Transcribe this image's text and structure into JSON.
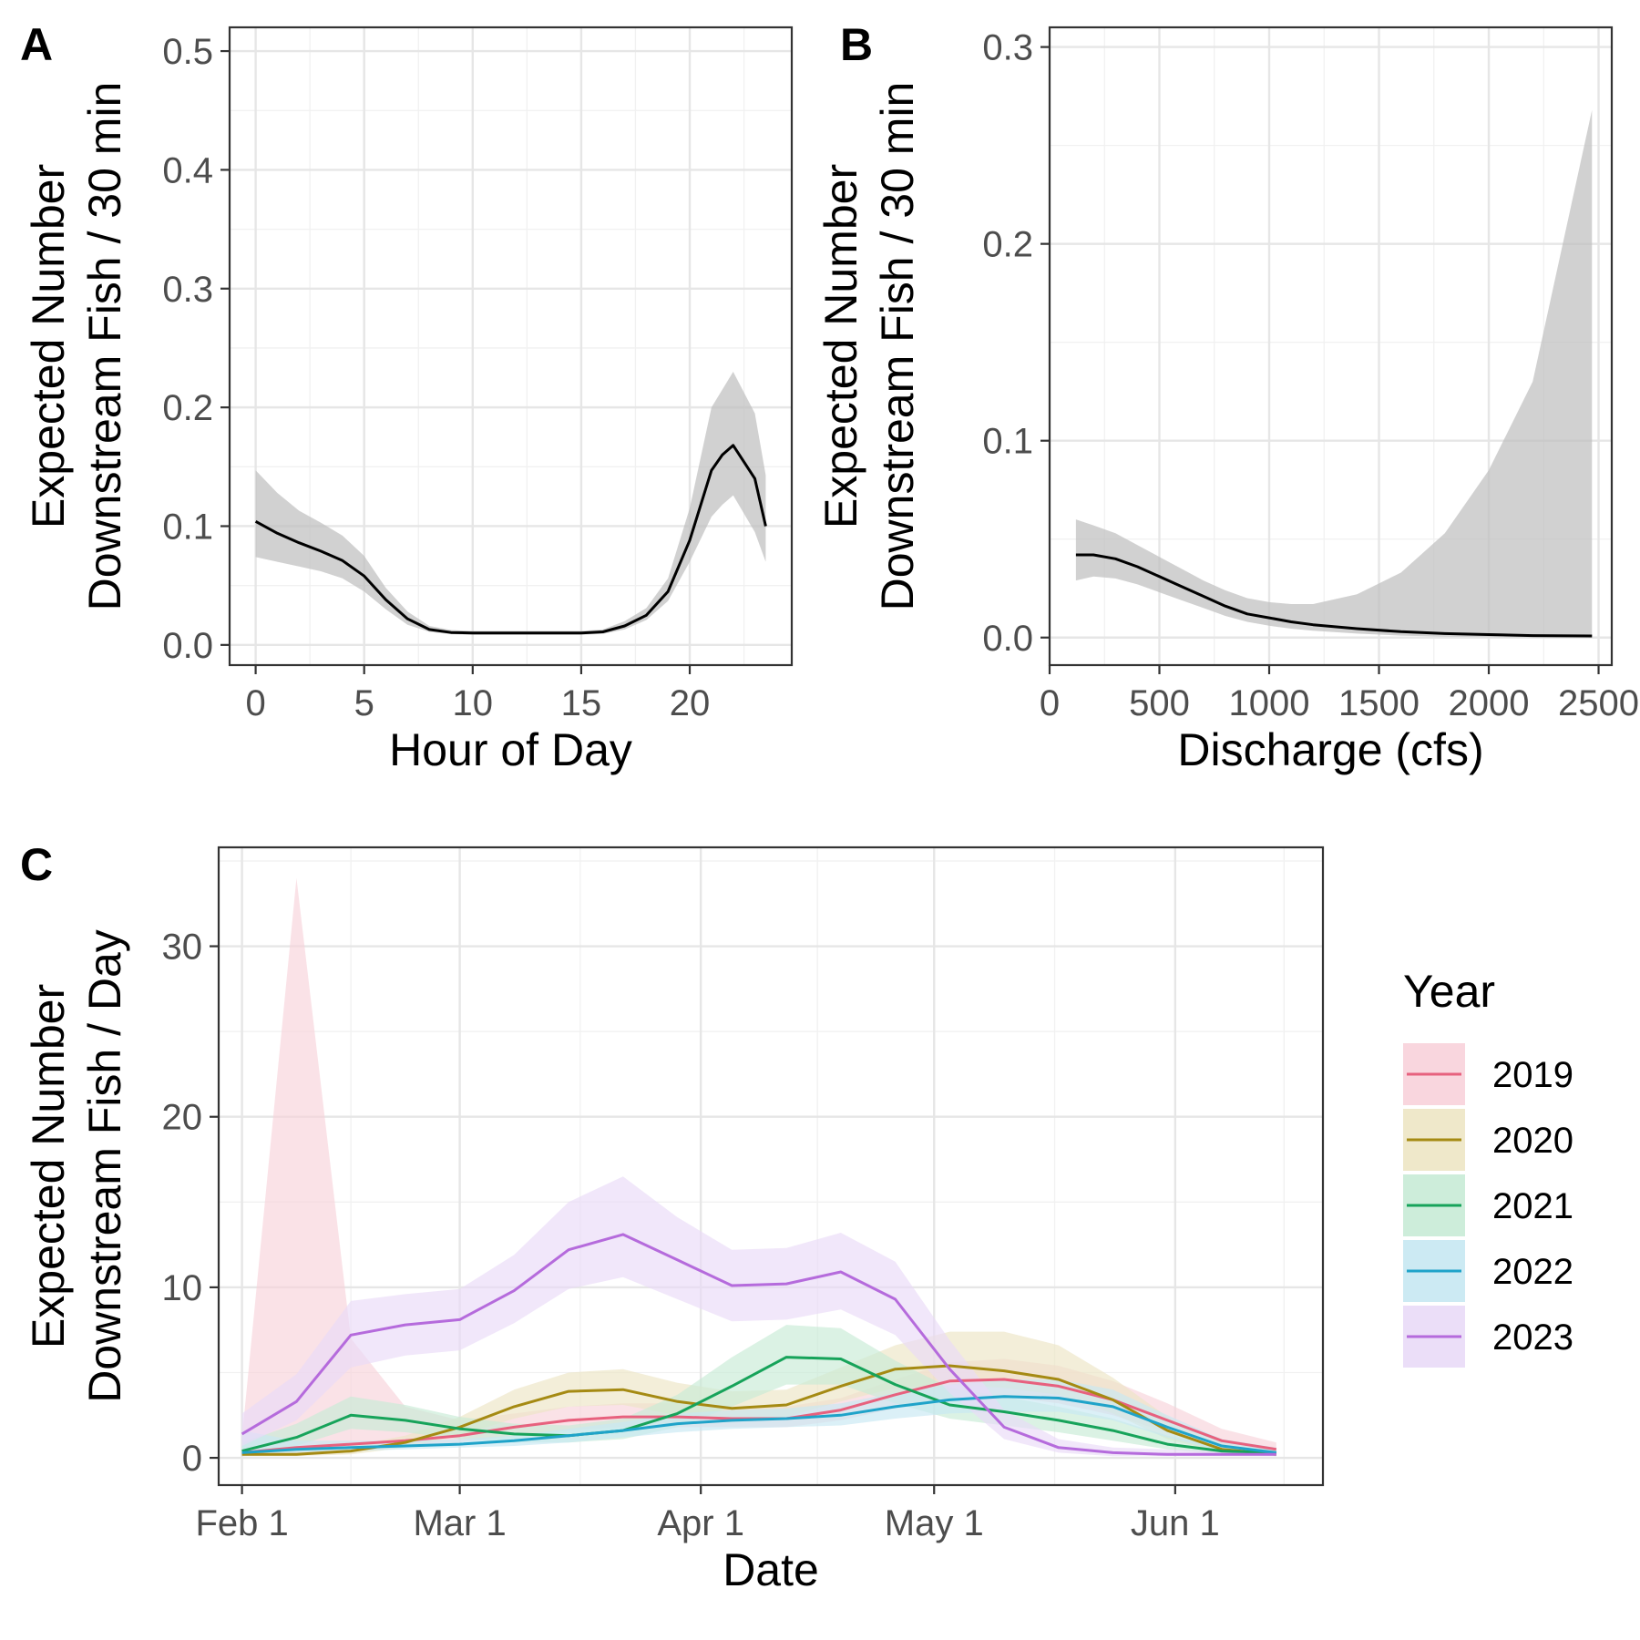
{
  "chart_data": [
    {
      "panel": "A",
      "type": "line",
      "xlabel": "Hour of Day",
      "ylabel": [
        "Expected Number",
        "Downstream Fish / 30 min"
      ],
      "xlim": [
        -1.2,
        24.7
      ],
      "ylim": [
        -0.017,
        0.52
      ],
      "x_ticks": [
        0,
        5,
        10,
        15,
        20
      ],
      "x_tick_labels": [
        "0",
        "5",
        "10",
        "15",
        "20"
      ],
      "y_ticks": [
        0,
        0.1,
        0.2,
        0.3,
        0.4,
        0.5
      ],
      "y_tick_labels": [
        "0.0",
        "0.1",
        "0.2",
        "0.3",
        "0.4",
        "0.5"
      ],
      "grid": true,
      "line_color": "#000000",
      "ribbon_color": "#bdbdbd",
      "x": [
        0,
        1,
        2,
        3,
        4,
        5,
        6,
        7,
        8,
        9,
        10,
        11,
        12,
        13,
        14,
        15,
        16,
        17,
        18,
        19,
        20,
        21,
        21.5,
        22,
        23,
        23.5
      ],
      "y": [
        0.104,
        0.094,
        0.086,
        0.079,
        0.071,
        0.058,
        0.038,
        0.022,
        0.013,
        0.0105,
        0.01,
        0.01,
        0.01,
        0.01,
        0.01,
        0.01,
        0.011,
        0.016,
        0.025,
        0.045,
        0.088,
        0.147,
        0.16,
        0.168,
        0.14,
        0.1
      ],
      "ymin": [
        0.074,
        0.07,
        0.066,
        0.062,
        0.056,
        0.045,
        0.03,
        0.017,
        0.011,
        0.009,
        0.0085,
        0.0085,
        0.0085,
        0.0085,
        0.0085,
        0.0085,
        0.0093,
        0.013,
        0.021,
        0.037,
        0.07,
        0.108,
        0.118,
        0.126,
        0.095,
        0.07
      ],
      "ymax": [
        0.147,
        0.128,
        0.113,
        0.103,
        0.092,
        0.075,
        0.048,
        0.028,
        0.016,
        0.0125,
        0.0118,
        0.0118,
        0.0118,
        0.0118,
        0.0118,
        0.0118,
        0.013,
        0.02,
        0.031,
        0.056,
        0.115,
        0.2,
        0.215,
        0.23,
        0.195,
        0.143
      ]
    },
    {
      "panel": "B",
      "type": "line",
      "xlabel": "Discharge (cfs)",
      "ylabel": [
        "Expected Number",
        "Downstream Fish / 30 min"
      ],
      "xlim": [
        0,
        2560
      ],
      "ylim": [
        -0.014,
        0.31
      ],
      "x_ticks": [
        0,
        500,
        1000,
        1500,
        2000,
        2500
      ],
      "x_tick_labels": [
        "0",
        "500",
        "1000",
        "1500",
        "2000",
        "2500"
      ],
      "y_ticks": [
        0,
        0.1,
        0.2,
        0.3
      ],
      "y_tick_labels": [
        "0.0",
        "0.1",
        "0.2",
        "0.3"
      ],
      "grid": true,
      "line_color": "#000000",
      "ribbon_color": "#bdbdbd",
      "x": [
        120,
        200,
        300,
        400,
        500,
        600,
        700,
        800,
        900,
        1000,
        1100,
        1200,
        1400,
        1600,
        1800,
        2000,
        2200,
        2470
      ],
      "y": [
        0.042,
        0.042,
        0.04,
        0.036,
        0.031,
        0.026,
        0.021,
        0.016,
        0.012,
        0.01,
        0.008,
        0.0065,
        0.0045,
        0.003,
        0.002,
        0.0015,
        0.001,
        0.0008
      ],
      "ymin": [
        0.029,
        0.031,
        0.03,
        0.027,
        0.023,
        0.019,
        0.015,
        0.011,
        0.008,
        0.006,
        0.0045,
        0.0035,
        0.002,
        0.001,
        0.0005,
        0.0002,
        0.0001,
        0.0
      ],
      "ymax": [
        0.06,
        0.057,
        0.053,
        0.047,
        0.041,
        0.035,
        0.029,
        0.024,
        0.02,
        0.018,
        0.017,
        0.017,
        0.022,
        0.033,
        0.053,
        0.085,
        0.13,
        0.268
      ]
    },
    {
      "panel": "C",
      "type": "line",
      "xlabel": "Date",
      "ylabel": [
        "Expected Number",
        "Downstream Fish / Day"
      ],
      "xlim": [
        "Jan 29",
        "Jun 20"
      ],
      "ylim": [
        -1.6,
        35.8
      ],
      "x_ticks": [
        "Feb 1",
        "Mar 1",
        "Apr 1",
        "May 1",
        "Jun 1"
      ],
      "x_tick_labels": [
        "Feb 1",
        "Mar 1",
        "Apr 1",
        "May 1",
        "Jun 1"
      ],
      "y_ticks": [
        0,
        10,
        20,
        30
      ],
      "y_tick_labels": [
        "0",
        "10",
        "20",
        "30"
      ],
      "grid": true,
      "legend": {
        "title": "Year",
        "position": "right"
      },
      "x": [
        "Feb 1",
        "Feb 8",
        "Feb 15",
        "Feb 22",
        "Mar 1",
        "Mar 8",
        "Mar 15",
        "Mar 22",
        "Mar 29",
        "Apr 5",
        "Apr 12",
        "Apr 19",
        "Apr 26",
        "May 3",
        "May 10",
        "May 17",
        "May 24",
        "May 31",
        "Jun 7",
        "Jun 14"
      ],
      "series": [
        {
          "name": "2019",
          "color": "#E7617E",
          "band": "#F8D2DA",
          "values": [
            0.3,
            0.6,
            0.8,
            1.0,
            1.3,
            1.8,
            2.2,
            2.4,
            2.4,
            2.3,
            2.3,
            2.8,
            3.7,
            4.5,
            4.6,
            4.2,
            3.4,
            2.2,
            1.0,
            0.5
          ],
          "ymin": [
            0.1,
            0.2,
            0.4,
            0.6,
            0.9,
            1.3,
            1.6,
            1.8,
            1.8,
            1.8,
            1.8,
            2.2,
            2.9,
            3.5,
            3.6,
            3.2,
            2.5,
            1.5,
            0.6,
            0.3
          ],
          "ymax": [
            1.2,
            34.0,
            7.0,
            3.0,
            2.2,
            2.6,
            3.0,
            3.2,
            3.2,
            3.0,
            3.0,
            3.5,
            4.6,
            5.6,
            5.8,
            5.4,
            4.5,
            3.2,
            1.7,
            0.9
          ]
        },
        {
          "name": "2020",
          "color": "#A58A13",
          "band": "#EDE5C4",
          "values": [
            0.2,
            0.2,
            0.4,
            0.9,
            1.8,
            3.0,
            3.9,
            4.0,
            3.3,
            2.9,
            3.1,
            4.2,
            5.2,
            5.4,
            5.1,
            4.6,
            3.4,
            1.6,
            0.5,
            0.2
          ],
          "ymin": [
            0.1,
            0.1,
            0.2,
            0.6,
            1.3,
            2.3,
            3.0,
            3.1,
            2.5,
            2.2,
            2.4,
            3.3,
            4.1,
            4.3,
            4.1,
            3.7,
            2.6,
            1.1,
            0.3,
            0.1
          ],
          "ymax": [
            0.4,
            0.4,
            0.7,
            1.3,
            2.4,
            4.0,
            5.0,
            5.2,
            4.4,
            3.9,
            4.0,
            5.3,
            6.6,
            7.4,
            7.4,
            6.6,
            4.7,
            2.4,
            0.9,
            0.4
          ]
        },
        {
          "name": "2021",
          "color": "#17A35A",
          "band": "#C8EBD6",
          "values": [
            0.4,
            1.2,
            2.5,
            2.2,
            1.7,
            1.4,
            1.3,
            1.6,
            2.6,
            4.2,
            5.9,
            5.8,
            4.3,
            3.1,
            2.7,
            2.2,
            1.6,
            0.8,
            0.4,
            0.3
          ],
          "ymin": [
            0.2,
            0.7,
            1.7,
            1.5,
            1.1,
            0.9,
            0.9,
            1.1,
            1.8,
            3.0,
            4.3,
            4.3,
            3.2,
            2.3,
            1.9,
            1.5,
            1.0,
            0.5,
            0.2,
            0.1
          ],
          "ymax": [
            0.9,
            2.0,
            3.6,
            3.1,
            2.4,
            2.0,
            1.9,
            2.3,
            3.7,
            5.9,
            7.8,
            7.6,
            5.7,
            4.1,
            3.6,
            3.0,
            2.3,
            1.3,
            0.7,
            0.5
          ],
          "note_values_source": "legend"
        },
        {
          "name": "2022",
          "color": "#1FA3C9",
          "band": "#C7E8F2",
          "values": [
            0.3,
            0.5,
            0.6,
            0.7,
            0.8,
            1.0,
            1.3,
            1.6,
            2.0,
            2.2,
            2.3,
            2.5,
            3.0,
            3.4,
            3.6,
            3.5,
            3.0,
            1.8,
            0.7,
            0.3
          ],
          "ymin": [
            0.1,
            0.3,
            0.4,
            0.5,
            0.6,
            0.7,
            0.9,
            1.2,
            1.5,
            1.7,
            1.8,
            1.9,
            2.3,
            2.6,
            2.7,
            2.7,
            2.2,
            1.2,
            0.4,
            0.1
          ],
          "ymax": [
            1.6,
            1.0,
            1.0,
            1.0,
            1.1,
            1.3,
            1.7,
            2.1,
            2.6,
            2.8,
            2.9,
            3.2,
            3.8,
            4.3,
            4.6,
            4.6,
            4.0,
            2.5,
            1.1,
            0.6
          ]
        },
        {
          "name": "2023",
          "color": "#B56BDC",
          "band": "#E9DAF7",
          "values": [
            1.4,
            3.3,
            7.2,
            7.8,
            8.1,
            9.8,
            12.2,
            13.1,
            11.6,
            10.1,
            10.2,
            10.9,
            9.3,
            5.2,
            1.8,
            0.6,
            0.3,
            0.2,
            0.2,
            0.2
          ],
          "ymin": [
            0.7,
            2.2,
            5.3,
            6.0,
            6.3,
            7.9,
            9.9,
            10.6,
            9.3,
            8.0,
            8.1,
            8.7,
            7.2,
            3.8,
            1.1,
            0.3,
            0.1,
            0.1,
            0.1,
            0.1
          ],
          "ymax": [
            2.6,
            4.9,
            9.2,
            9.6,
            9.9,
            11.9,
            15.0,
            16.5,
            14.1,
            12.2,
            12.3,
            13.2,
            11.5,
            6.9,
            2.8,
            1.1,
            0.6,
            0.5,
            0.4,
            0.4
          ]
        }
      ]
    }
  ]
}
